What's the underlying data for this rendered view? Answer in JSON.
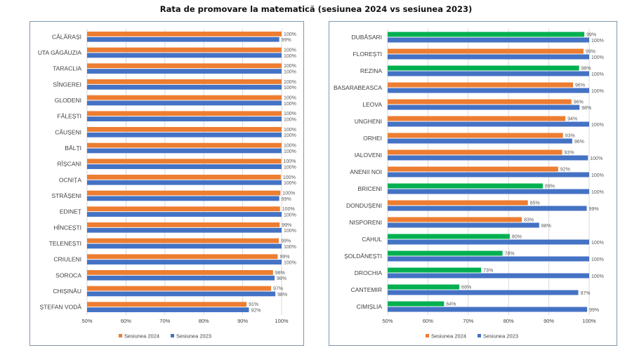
{
  "title": "Rata de promovare la matematică (sesiunea 2024 vs sesiunea 2023)",
  "colors": {
    "s2024": "#ed7d31",
    "s2023": "#4472c4",
    "highlight": "#00b050",
    "grid": "#d9d9d9",
    "border": "#7f97ad"
  },
  "chart_data": [
    {
      "type": "bar",
      "orientation": "horizontal",
      "title": "",
      "xlabel": "",
      "ylabel": "",
      "xlim": [
        0.5,
        1.0
      ],
      "ticks": [
        "50%",
        "60%",
        "70%",
        "80%",
        "90%",
        "100%"
      ],
      "tick_values": [
        0.5,
        0.6,
        0.7,
        0.8,
        0.9,
        1.0
      ],
      "grid": true,
      "legend_position": "bottom",
      "categories": [
        "CĂLĂRAȘI",
        "UTA GĂGĂUZIA",
        "TARACLIA",
        "SÎNGEREI",
        "GLODENI",
        "FĂLEȘTI",
        "CĂUȘENI",
        "BĂLȚI",
        "RÎȘCANI",
        "OCNIȚA",
        "STRĂȘENI",
        "EDINEȚ",
        "HÎNCEȘTI",
        "TELENEȘTI",
        "CRIULENI",
        "SOROCA",
        "CHIȘINĂU",
        "ȘTEFAN VODĂ"
      ],
      "series": [
        {
          "name": "Sesiunea 2024",
          "values": [
            1.0,
            1.0,
            1.0,
            1.0,
            1.0,
            1.0,
            1.0,
            1.0,
            0.999,
            0.998,
            0.997,
            0.996,
            0.995,
            0.993,
            0.99,
            0.978,
            0.973,
            0.91
          ],
          "labels": [
            "100%",
            "100%",
            "100%",
            "100%",
            "100%",
            "100%",
            "100%",
            "100%",
            "100%",
            "100%",
            "100%",
            "100%",
            "99%",
            "99%",
            "99%",
            "98%",
            "97%",
            "91%"
          ],
          "highlight": [
            false,
            false,
            false,
            false,
            false,
            false,
            false,
            false,
            false,
            false,
            false,
            false,
            false,
            false,
            false,
            false,
            false,
            false
          ]
        },
        {
          "name": "Sesiunea 2023",
          "values": [
            0.994,
            1.0,
            1.0,
            1.0,
            1.0,
            1.0,
            1.0,
            1.0,
            1.0,
            1.0,
            0.994,
            1.0,
            1.0,
            1.0,
            1.0,
            0.982,
            0.984,
            0.916
          ],
          "labels": [
            "99%",
            "100%",
            "100%",
            "100%",
            "100%",
            "100%",
            "100%",
            "100%",
            "100%",
            "100%",
            "99%",
            "100%",
            "100%",
            "100%",
            "100%",
            "98%",
            "98%",
            "92%"
          ]
        }
      ]
    },
    {
      "type": "bar",
      "orientation": "horizontal",
      "title": "",
      "xlabel": "",
      "ylabel": "",
      "xlim": [
        0.5,
        1.0
      ],
      "ticks": [
        "50%",
        "60%",
        "70%",
        "80%",
        "90%",
        "100%"
      ],
      "tick_values": [
        0.5,
        0.6,
        0.7,
        0.8,
        0.9,
        1.0
      ],
      "grid": true,
      "legend_position": "bottom",
      "categories": [
        "DUBĂSARI",
        "FLOREȘTI",
        "REZINA",
        "BASARABEASCA",
        "LEOVA",
        "UNGHENI",
        "ORHEI",
        "IALOVENI",
        "ANENII NOI",
        "BRICENI",
        "DONDUȘENI",
        "NISPORENI",
        "CAHUL",
        "ȘOLDĂNEȘTI",
        "DROCHIA",
        "CANTEMIR",
        "CIMIȘLIA"
      ],
      "series": [
        {
          "name": "Sesiunea 2024",
          "values": [
            0.988,
            0.986,
            0.975,
            0.96,
            0.956,
            0.941,
            0.935,
            0.933,
            0.923,
            0.885,
            0.848,
            0.833,
            0.803,
            0.785,
            0.732,
            0.678,
            0.64
          ],
          "labels": [
            "99%",
            "99%",
            "98%",
            "96%",
            "96%",
            "94%",
            "93%",
            "93%",
            "92%",
            "89%",
            "85%",
            "83%",
            "80%",
            "78%",
            "73%",
            "68%",
            "64%"
          ],
          "highlight": [
            true,
            false,
            true,
            false,
            false,
            false,
            false,
            false,
            false,
            true,
            false,
            false,
            true,
            true,
            true,
            true,
            true
          ]
        },
        {
          "name": "Sesiunea 2023",
          "values": [
            1.0,
            1.0,
            1.0,
            1.0,
            0.976,
            1.0,
            0.958,
            0.997,
            1.0,
            1.0,
            0.994,
            0.876,
            1.0,
            1.0,
            1.0,
            0.973,
            0.995
          ],
          "labels": [
            "100%",
            "100%",
            "100%",
            "100%",
            "98%",
            "100%",
            "96%",
            "100%",
            "100%",
            "100%",
            "99%",
            "88%",
            "100%",
            "100%",
            "100%",
            "97%",
            "99%"
          ]
        }
      ]
    }
  ]
}
